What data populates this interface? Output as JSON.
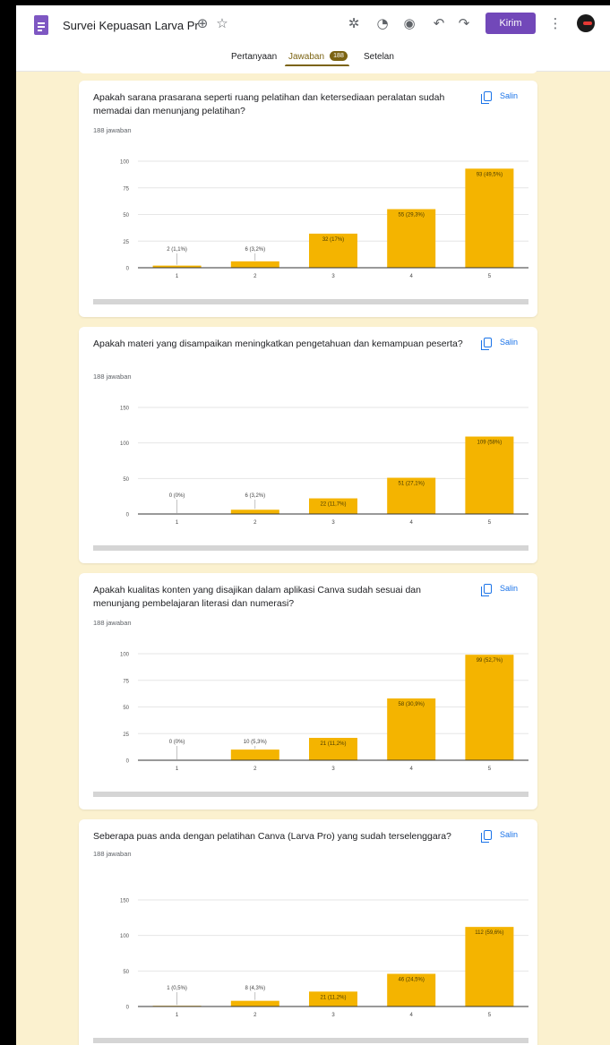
{
  "header": {
    "form_title": "Survei Kepuasan Larva Pr",
    "send_label": "Kirim",
    "icons": [
      "form-icon",
      "move-to-folder-icon",
      "star-icon",
      "addon-icon",
      "palette-icon",
      "preview-eye-icon",
      "undo-icon",
      "redo-icon",
      "more-vert-icon",
      "avatar"
    ]
  },
  "tabs": {
    "questions": "Pertanyaan",
    "responses": "Jawaban",
    "responses_count": "188",
    "settings": "Setelan"
  },
  "colors": {
    "bar": "#f4b400",
    "accent": "#7b6312",
    "send": "#7248b9",
    "copy": "#1a73e8",
    "background": "#fbf1cf"
  },
  "cards": [
    {
      "question": "Apakah sarana prasarana seperti ruang pelatihan dan ketersediaan peralatan sudah memadai dan menunjang pelatihan?",
      "responses": "188 jawaban",
      "copy_label": "Salin"
    },
    {
      "question": "Apakah materi yang disampaikan meningkatkan pengetahuan dan kemampuan peserta?",
      "responses": "188 jawaban",
      "copy_label": "Salin"
    },
    {
      "question": "Apakah kualitas konten yang disajikan dalam aplikasi Canva sudah sesuai dan menunjang pembelajaran literasi dan numerasi?",
      "responses": "188 jawaban",
      "copy_label": "Salin"
    },
    {
      "question": "Seberapa puas anda dengan pelatihan Canva (Larva Pro) yang sudah terselenggara?",
      "responses": "188 jawaban",
      "copy_label": "Salin"
    }
  ],
  "chart_data": [
    {
      "type": "bar",
      "categories": [
        "1",
        "2",
        "3",
        "4",
        "5"
      ],
      "values": [
        2,
        6,
        32,
        55,
        93
      ],
      "data_labels": [
        "2 (1,1%)",
        "6 (3,2%)",
        "32 (17%)",
        "55 (29,3%)",
        "93 (49,5%)"
      ],
      "yticks": [
        0,
        25,
        50,
        75,
        100
      ],
      "ylim": [
        0,
        100
      ]
    },
    {
      "type": "bar",
      "categories": [
        "1",
        "2",
        "3",
        "4",
        "5"
      ],
      "values": [
        0,
        6,
        22,
        51,
        109
      ],
      "data_labels": [
        "0 (0%)",
        "6 (3,2%)",
        "22 (11,7%)",
        "51 (27,1%)",
        "109 (58%)"
      ],
      "yticks": [
        0,
        50,
        100,
        150
      ],
      "ylim": [
        0,
        150
      ]
    },
    {
      "type": "bar",
      "categories": [
        "1",
        "2",
        "3",
        "4",
        "5"
      ],
      "values": [
        0,
        10,
        21,
        58,
        99
      ],
      "data_labels": [
        "0 (0%)",
        "10 (5,3%)",
        "21 (11,2%)",
        "58 (30,9%)",
        "99 (52,7%)"
      ],
      "yticks": [
        0,
        25,
        50,
        75,
        100
      ],
      "ylim": [
        0,
        100
      ]
    },
    {
      "type": "bar",
      "categories": [
        "1",
        "2",
        "3",
        "4",
        "5"
      ],
      "values": [
        1,
        8,
        21,
        46,
        112
      ],
      "data_labels": [
        "1 (0,5%)",
        "8 (4,3%)",
        "21 (11,2%)",
        "46 (24,5%)",
        "112 (59,6%)"
      ],
      "yticks": [
        0,
        50,
        100,
        150
      ],
      "ylim": [
        0,
        150
      ]
    }
  ]
}
